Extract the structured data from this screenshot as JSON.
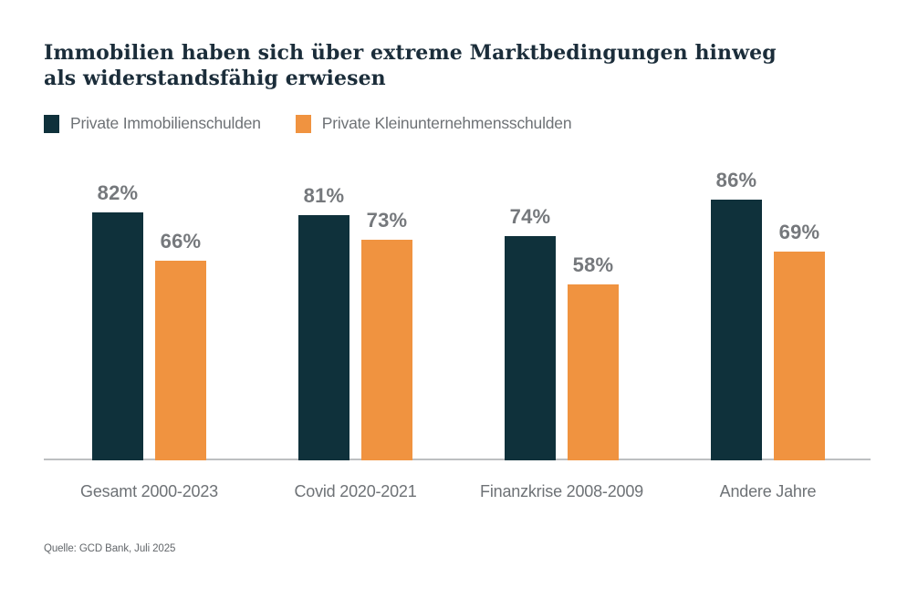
{
  "title": "Immobilien haben sich über extreme Marktbedingungen hinweg als widerstandsfähig erwiesen",
  "source": "Quelle: GCD Bank, Juli 2025",
  "colors": {
    "primary_series": "#0f313b",
    "secondary_series": "#f09340",
    "title_text": "#1b2d3a",
    "muted_text": "#6e7276",
    "value_label_text": "#75787c",
    "axis_line": "#bdbfc1",
    "background": "#ffffff"
  },
  "chart_data": {
    "type": "bar",
    "title": "Immobilien haben sich über extreme Marktbedingungen hinweg als widerstandsfähig erwiesen",
    "categories": [
      "Gesamt 2000-2023",
      "Covid 2020-2021",
      "Finanzkrise 2008-2009",
      "Andere Jahre"
    ],
    "series": [
      {
        "name": "Private Immobilienschulden",
        "color": "#0f313b",
        "values": [
          82,
          81,
          74,
          86
        ]
      },
      {
        "name": "Private Kleinunternehmensschulden",
        "color": "#f09340",
        "values": [
          66,
          73,
          58,
          69
        ]
      }
    ],
    "value_suffix": "%",
    "value_labels": true,
    "xlabel": "",
    "ylabel": "",
    "ylim": [
      0,
      100
    ],
    "grid": false,
    "legend_position": "top",
    "source": "Quelle: GCD Bank, Juli 2025"
  }
}
